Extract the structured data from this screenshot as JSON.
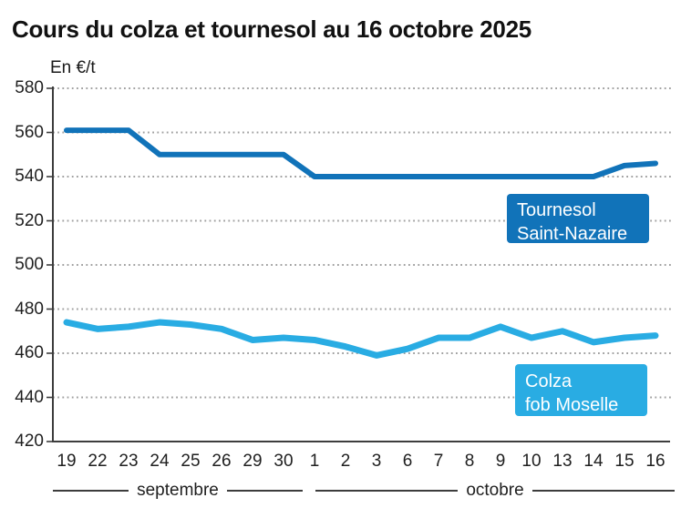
{
  "chart_data": {
    "type": "line",
    "title": "Cours du colza et tournesol au 16 octobre 2025",
    "ylabel": "En €/t",
    "xlabel": "",
    "ylim": [
      420,
      580
    ],
    "yticks": [
      580,
      560,
      540,
      520,
      500,
      480,
      460,
      440,
      420
    ],
    "grid": "horizontal-dotted",
    "x": [
      "19",
      "22",
      "23",
      "24",
      "25",
      "26",
      "29",
      "30",
      "1",
      "2",
      "3",
      "6",
      "7",
      "8",
      "9",
      "10",
      "13",
      "14",
      "15",
      "16"
    ],
    "x_axis_groups": [
      {
        "label": "septembre",
        "from": "19",
        "to": "30"
      },
      {
        "label": "octobre",
        "from": "1",
        "to": "16"
      }
    ],
    "series": [
      {
        "name": "Tournesol Saint-Nazaire",
        "color": "#1173b9",
        "values": [
          561,
          561,
          561,
          550,
          550,
          550,
          550,
          550,
          540,
          540,
          540,
          540,
          540,
          540,
          540,
          540,
          540,
          540,
          545,
          546
        ]
      },
      {
        "name": "Colza fob Moselle",
        "color": "#29ace3",
        "values": [
          474,
          471,
          472,
          474,
          473,
          471,
          466,
          467,
          466,
          463,
          459,
          462,
          467,
          467,
          472,
          467,
          470,
          465,
          467,
          468
        ]
      }
    ],
    "legend": [
      {
        "lines": [
          "Tournesol",
          "Saint-Nazaire"
        ],
        "color": "#1173b9"
      },
      {
        "lines": [
          "Colza",
          "fob Moselle"
        ],
        "color": "#29ace3"
      }
    ],
    "legend_position": "inside-right",
    "colors": {
      "grid": "#a0a0a0",
      "axis": "#3d3d3d",
      "text": "#1f1f1f",
      "title": "#111111"
    }
  }
}
